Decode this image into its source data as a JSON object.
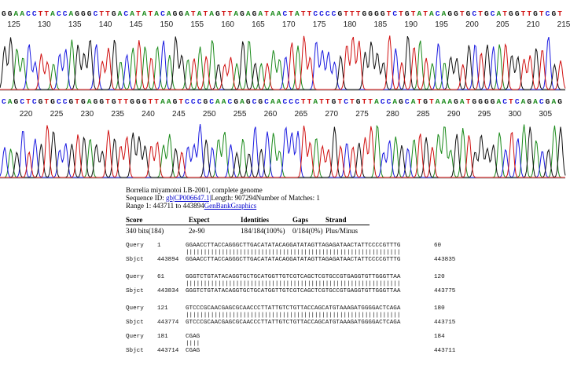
{
  "chromatogram_top": {
    "bases": "GGAACCTTACCAGGGCTTGACATATACAGGATATAGTTAGAGATAACTATTCCCCGTTTGGGGTCTGTATACAGGTGCTGCATGGTTGTCGT",
    "ticks": [
      "125",
      "130",
      "135",
      "140",
      "145",
      "150",
      "155",
      "160",
      "165",
      "170",
      "175",
      "180",
      "185",
      "190",
      "195",
      "200",
      "205",
      "210",
      "215"
    ]
  },
  "chromatogram_bottom": {
    "bases": "CAGCTCGTGCCGTGAGGTGTTGGGTTAAGTCCCGCAACGAGCGCAACCCTTATTGTCTGTTACCAGCATGTAAAGATGGGGACTCAGACGAG",
    "ticks": [
      "220",
      "225",
      "230",
      "235",
      "240",
      "245",
      "250",
      "255",
      "260",
      "265",
      "270",
      "275",
      "280",
      "285",
      "290",
      "295",
      "300",
      "305"
    ]
  },
  "base_colors": {
    "A": "#1a8a1a",
    "C": "#1a1ae0",
    "G": "#111111",
    "T": "#d01010"
  },
  "blast": {
    "title": "Borrelia miyamotoi LB-2001, complete genome",
    "seq_id_label": "Sequence ID:",
    "seq_id_link": "gb|CP006647.1|",
    "length_text": "Length: 907294Number of Matches: 1",
    "range_text": "Range 1: 443711 to 443894",
    "genbank_link": "GenBank",
    "graphics_link": "Graphics",
    "stats_headers": [
      "Score",
      "Expect",
      "Identities",
      "Gaps",
      "Strand"
    ],
    "stats_values": [
      "340 bits(184)",
      "2e-90",
      "184/184(100%)",
      "0/184(0%)",
      "Plus/Minus"
    ],
    "alignment": [
      {
        "q_start": "1",
        "q_seq": "GGAACCTTACCAGGGCTTGACATATACAGGATATAGTTAGAGATAACTATTCCCCGTTTG",
        "q_end": "60",
        "match": "||||||||||||||||||||||||||||||||||||||||||||||||||||||||||||",
        "s_start": "443894",
        "s_seq": "GGAACCTTACCAGGGCTTGACATATACAGGATATAGTTAGAGATAACTATTCCCCGTTTG",
        "s_end": "443835"
      },
      {
        "q_start": "61",
        "q_seq": "GGGTCTGTATACAGGTGCTGCATGGTTGTCGTCAGCTCGTGCCGTGAGGTGTTGGGTTAA",
        "q_end": "120",
        "match": "||||||||||||||||||||||||||||||||||||||||||||||||||||||||||||",
        "s_start": "443834",
        "s_seq": "GGGTCTGTATACAGGTGCTGCATGGTTGTCGTCAGCTCGTGCCGTGAGGTGTTGGGTTAA",
        "s_end": "443775"
      },
      {
        "q_start": "121",
        "q_seq": "GTCCCGCAACGAGCGCAACCCTTATTGTCTGTTACCAGCATGTAAAGATGGGGACTCAGA",
        "q_end": "180",
        "match": "||||||||||||||||||||||||||||||||||||||||||||||||||||||||||||",
        "s_start": "443774",
        "s_seq": "GTCCCGCAACGAGCGCAACCCTTATTGTCTGTTACCAGCATGTAAAGATGGGGACTCAGA",
        "s_end": "443715"
      },
      {
        "q_start": "181",
        "q_seq": "CGAG",
        "q_end": "184",
        "match": "||||",
        "s_start": "443714",
        "s_seq": "CGAG",
        "s_end": "443711"
      }
    ],
    "query_label": "Query",
    "sbjct_label": "Sbjct"
  }
}
